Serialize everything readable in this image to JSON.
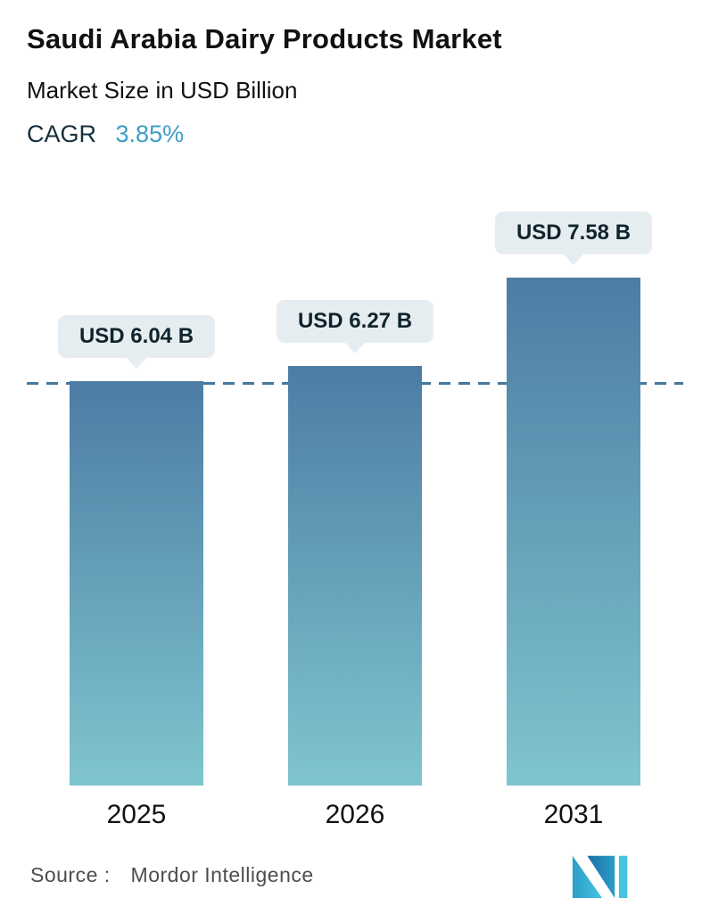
{
  "header": {
    "title": "Saudi Arabia Dairy Products Market",
    "subtitle": "Market Size in USD Billion",
    "cagr_label": "CAGR",
    "cagr_value": "3.85%"
  },
  "chart_data": {
    "type": "bar",
    "title": "Saudi Arabia Dairy Products Market",
    "subtitle": "Market Size in USD Billion",
    "unit": "USD Billion",
    "categories": [
      "2025",
      "2026",
      "2031"
    ],
    "values": [
      6.04,
      6.27,
      7.58
    ],
    "value_labels": [
      "USD 6.04 B",
      "USD 6.27 B",
      "USD 7.58 B"
    ],
    "cagr": "3.85%",
    "xlabel": "",
    "ylabel": "Market Size in USD Billion",
    "ylim": [
      0,
      8
    ],
    "grid": false,
    "legend": false,
    "reference_line": {
      "style": "dashed",
      "value": 6.04
    },
    "colors": {
      "bar_gradient_top": "#4d7ca4",
      "bar_gradient_bottom": "#7fc5ce",
      "dashed_line": "#45789f",
      "accent": "#3f9dc9",
      "badge_background": "#e6edf0"
    }
  },
  "footer": {
    "source_label": "Source :",
    "source_value": "Mordor Intelligence",
    "logo_name": "mordor-intelligence-logo"
  }
}
